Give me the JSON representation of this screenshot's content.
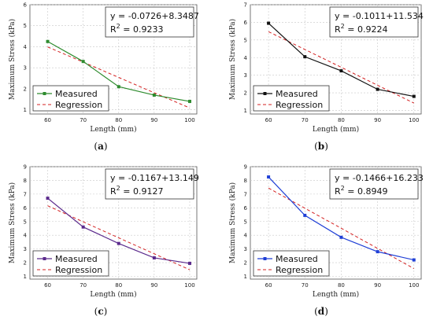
{
  "chart_data": [
    {
      "type": "line",
      "caption": "(a)",
      "xlabel": "Length (mm)",
      "ylabel": "Maximum Stress (kPa)",
      "x": [
        60,
        70,
        80,
        90,
        100
      ],
      "xlim": [
        55,
        102
      ],
      "ylim": [
        0.8,
        6
      ],
      "yticks": [
        1,
        2,
        3,
        4,
        5,
        6
      ],
      "equation": "y = -0.0726+8.3487",
      "r2_label": "R",
      "r2_exp": "2",
      "r2_value": " = 0.9233",
      "color": "#2e8b2e",
      "series": [
        {
          "name": "Measured",
          "values": [
            4.25,
            3.3,
            2.1,
            1.7,
            1.4
          ]
        },
        {
          "name": "Regression",
          "values": [
            3.99,
            3.27,
            2.54,
            1.81,
            1.09
          ]
        }
      ]
    },
    {
      "type": "line",
      "caption": "(b)",
      "xlabel": "Length (mm)",
      "ylabel": "Maximum Stress (kPa)",
      "x": [
        60,
        70,
        80,
        90,
        100
      ],
      "xlim": [
        55,
        102
      ],
      "ylim": [
        0.8,
        7
      ],
      "yticks": [
        1,
        2,
        3,
        4,
        5,
        6,
        7
      ],
      "equation": "y = -0.1011+11.534",
      "r2_label": "R",
      "r2_exp": "2",
      "r2_value": " = 0.9224",
      "color": "#111111",
      "series": [
        {
          "name": "Measured",
          "values": [
            5.95,
            4.05,
            3.25,
            2.2,
            1.8
          ]
        },
        {
          "name": "Regression",
          "values": [
            5.47,
            4.46,
            3.45,
            2.43,
            1.42
          ]
        }
      ]
    },
    {
      "type": "line",
      "caption": "(c)",
      "xlabel": "Length (mm)",
      "ylabel": "Maximum Stress (kPa)",
      "x": [
        60,
        70,
        80,
        90,
        100
      ],
      "xlim": [
        55,
        102
      ],
      "ylim": [
        0.8,
        9
      ],
      "yticks": [
        1,
        2,
        3,
        4,
        5,
        6,
        7,
        8,
        9
      ],
      "equation": "y = -0.1167+13.149",
      "r2_label": "R",
      "r2_exp": "2",
      "r2_value": " = 0.9127",
      "color": "#5b2a8c",
      "series": [
        {
          "name": "Measured",
          "values": [
            6.7,
            4.6,
            3.4,
            2.35,
            1.95
          ]
        },
        {
          "name": "Regression",
          "values": [
            6.15,
            4.98,
            3.81,
            2.65,
            1.48
          ]
        }
      ]
    },
    {
      "type": "line",
      "caption": "(d)",
      "xlabel": "Length (mm)",
      "ylabel": "Maximum Stress (kPa)",
      "x": [
        60,
        70,
        80,
        90,
        100
      ],
      "xlim": [
        55,
        102
      ],
      "ylim": [
        0.8,
        9
      ],
      "yticks": [
        1,
        2,
        3,
        4,
        5,
        6,
        7,
        8,
        9
      ],
      "equation": "y = -0.1466+16.233",
      "r2_label": "R",
      "r2_exp": "2",
      "r2_value": " = 0.8949",
      "color": "#1f3fd6",
      "series": [
        {
          "name": "Measured",
          "values": [
            8.25,
            5.45,
            3.85,
            2.8,
            2.2
          ]
        },
        {
          "name": "Regression",
          "values": [
            7.44,
            5.97,
            4.51,
            3.04,
            1.57
          ]
        }
      ]
    }
  ]
}
